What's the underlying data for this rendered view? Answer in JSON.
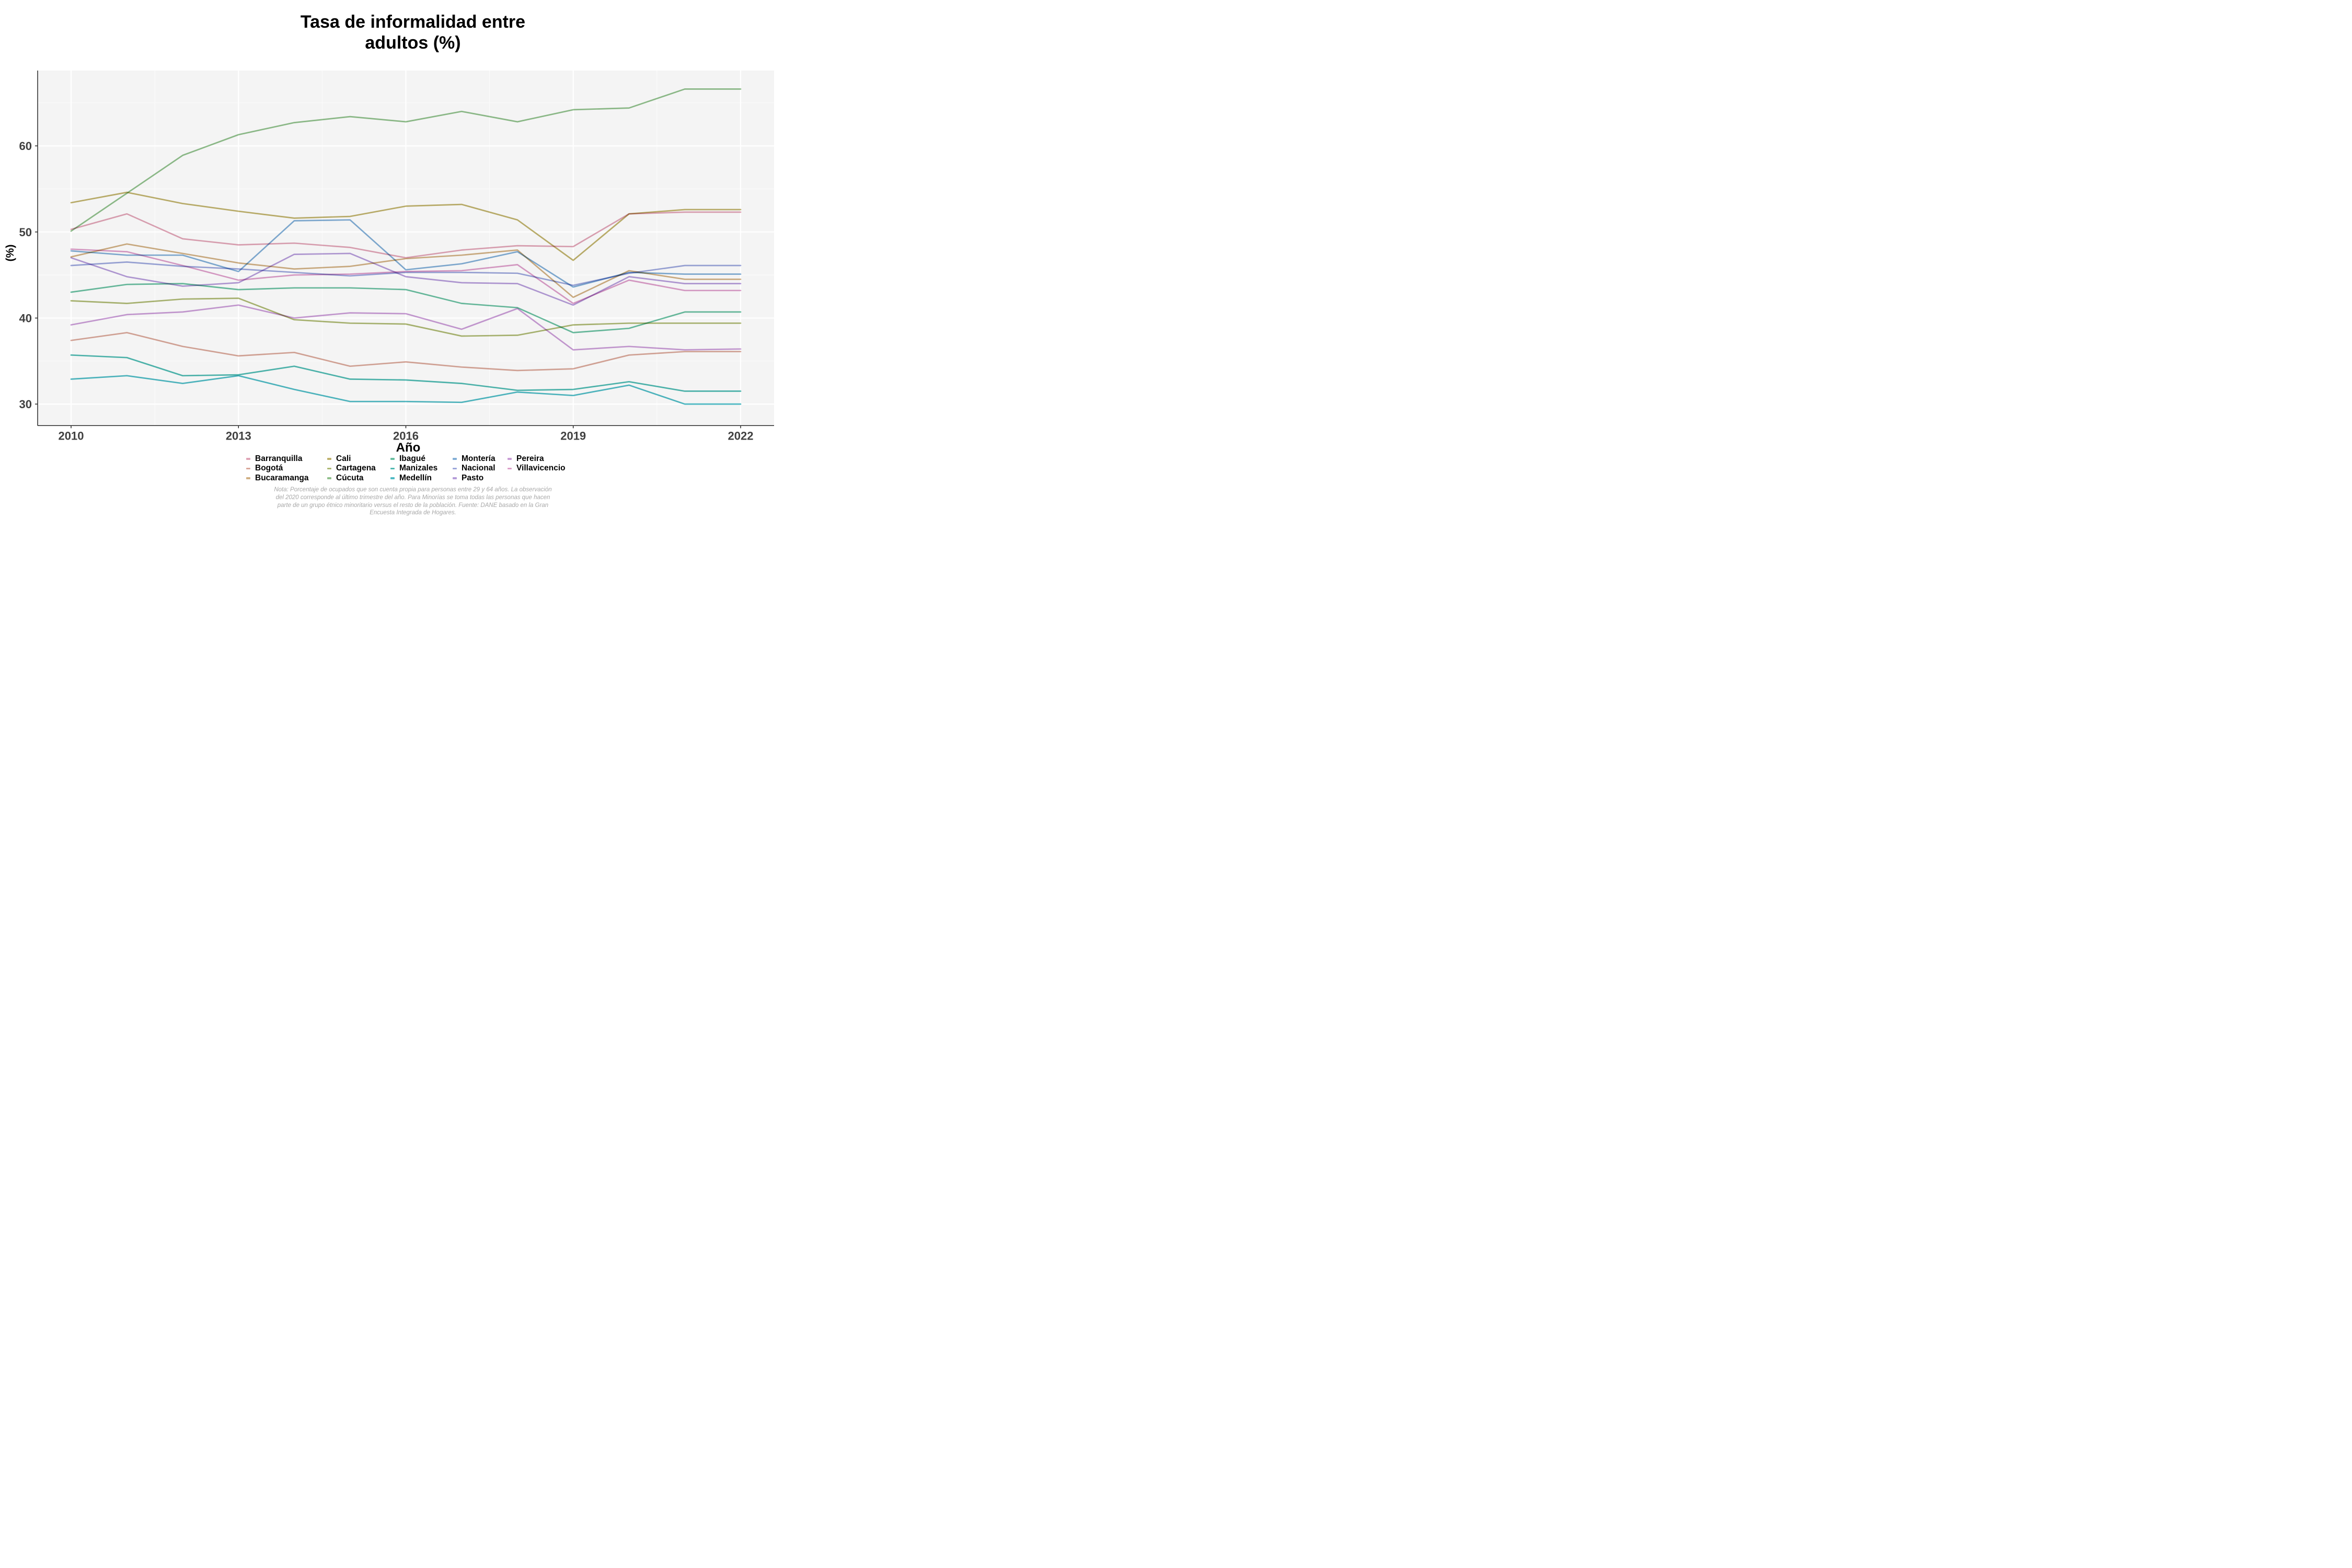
{
  "title": {
    "line1": "Tasa de informalidad entre",
    "line2": "adultos (%)"
  },
  "axes": {
    "x_label": "Año",
    "y_label": "(%)",
    "x_ticks": [
      2010,
      2013,
      2016,
      2019,
      2022
    ],
    "y_ticks": [
      30,
      40,
      50,
      60
    ]
  },
  "note_lines": [
    "Nota: Porcentaje de ocupados que son cuenta propia para personas entre 29 y 64 años. La observación",
    "del 2020 corresponde al último trimestre del año. Para Minorías se toma todas las personas que hacen",
    "parte de un grupo étnico minoritario versus el resto de la población. Fuente: DANE basado en la Gran",
    "Encuesta Integrada de Hogares."
  ],
  "colors": {
    "panel": "#f4f4f4",
    "grid_major": "#ffffff",
    "grid_minor": "#fbfbfb",
    "axis_line": "#1a1a1a",
    "tick_label": "#404040"
  },
  "chart_data": {
    "type": "line",
    "title": "Tasa de informalidad entre adultos (%)",
    "xlabel": "Año",
    "ylabel": "(%)",
    "legend_position": "bottom",
    "grid": "on",
    "x": [
      2010,
      2011,
      2012,
      2013,
      2014,
      2015,
      2016,
      2017,
      2018,
      2019,
      2020,
      2021,
      2022
    ],
    "xlim": [
      2009.4,
      2022.6
    ],
    "ylim": [
      27.5,
      68.75
    ],
    "minor_x": [
      2011.5,
      2014.5,
      2017.5,
      2020.5
    ],
    "minor_y": [
      35,
      45,
      55,
      65
    ],
    "series": [
      {
        "name": "Barranquilla",
        "color": "#e0a4b6",
        "values": [
          50.3,
          52.1,
          49.2,
          48.5,
          48.7,
          48.2,
          47.0,
          47.9,
          48.4,
          48.3,
          52.1,
          52.3,
          52.3
        ]
      },
      {
        "name": "Bogotá",
        "color": "#d9a79a",
        "values": [
          37.4,
          38.3,
          36.7,
          35.6,
          36.0,
          34.4,
          34.9,
          34.3,
          33.9,
          34.1,
          35.7,
          36.1,
          36.1
        ]
      },
      {
        "name": "Bucaramanga",
        "color": "#d0b084",
        "values": [
          47.1,
          48.6,
          47.5,
          46.4,
          45.7,
          46.0,
          46.9,
          47.3,
          47.9,
          42.4,
          45.5,
          44.5,
          44.5
        ]
      },
      {
        "name": "Cali",
        "color": "#bfb26d",
        "values": [
          53.4,
          54.6,
          53.3,
          52.4,
          51.6,
          51.8,
          53.0,
          53.2,
          51.4,
          46.7,
          52.1,
          52.6,
          52.6
        ]
      },
      {
        "name": "Cartagena",
        "color": "#adb873",
        "values": [
          42.0,
          41.7,
          42.2,
          42.3,
          39.8,
          39.4,
          39.3,
          37.9,
          38.0,
          39.2,
          39.4,
          39.4,
          39.4
        ]
      },
      {
        "name": "Cúcuta",
        "color": "#90c08c",
        "values": [
          50.1,
          54.5,
          58.9,
          61.3,
          62.7,
          63.4,
          62.8,
          64.0,
          62.8,
          64.2,
          64.4,
          66.6,
          66.6
        ]
      },
      {
        "name": "Ibagué",
        "color": "#69bea0",
        "values": [
          43.0,
          43.9,
          44.0,
          43.3,
          43.5,
          43.5,
          43.3,
          41.7,
          41.2,
          38.3,
          38.8,
          40.7,
          40.7
        ]
      },
      {
        "name": "Manizales",
        "color": "#4fb9b1",
        "values": [
          35.7,
          35.4,
          33.3,
          33.4,
          34.4,
          32.9,
          32.8,
          32.4,
          31.6,
          31.7,
          32.6,
          31.5,
          31.5
        ]
      },
      {
        "name": "Medellín",
        "color": "#4fbac4",
        "values": [
          32.9,
          33.3,
          32.4,
          33.3,
          31.7,
          30.3,
          30.3,
          30.2,
          31.4,
          31.0,
          32.2,
          30.0,
          30.0
        ]
      },
      {
        "name": "Montería",
        "color": "#82aed6",
        "values": [
          47.8,
          47.3,
          47.3,
          45.4,
          51.3,
          51.4,
          45.6,
          46.3,
          47.7,
          43.6,
          45.3,
          45.1,
          45.1
        ]
      },
      {
        "name": "Nacional",
        "color": "#9ca6db",
        "values": [
          46.1,
          46.5,
          46.0,
          45.7,
          45.3,
          44.9,
          45.3,
          45.3,
          45.2,
          43.8,
          45.2,
          46.1,
          46.1
        ]
      },
      {
        "name": "Pasto",
        "color": "#b59cd9",
        "values": [
          47.0,
          44.8,
          43.7,
          44.1,
          47.4,
          47.5,
          44.8,
          44.1,
          44.0,
          41.5,
          44.8,
          44.0,
          44.0
        ]
      },
      {
        "name": "Pereira",
        "color": "#c99cd6",
        "values": [
          39.2,
          40.4,
          40.7,
          41.5,
          40.0,
          40.6,
          40.5,
          38.7,
          41.1,
          36.3,
          36.7,
          36.3,
          36.4
        ]
      },
      {
        "name": "Villavicencio",
        "color": "#dc9ec9",
        "values": [
          48.0,
          47.7,
          46.1,
          44.4,
          45.0,
          45.1,
          45.4,
          45.5,
          46.2,
          41.7,
          44.4,
          43.2,
          43.2
        ]
      }
    ]
  }
}
